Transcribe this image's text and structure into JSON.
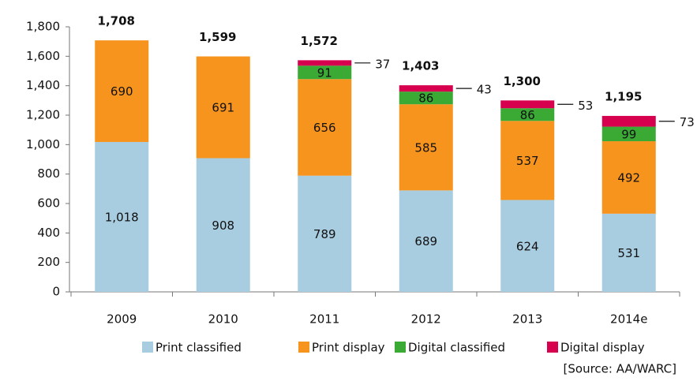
{
  "chart_data": {
    "type": "stacked_bar",
    "categories": [
      "2009",
      "2010",
      "2011",
      "2012",
      "2013",
      "2014e"
    ],
    "series": [
      {
        "name": "Print classified",
        "color": "#a9cde0",
        "values": [
          1018,
          908,
          789,
          689,
          624,
          531
        ],
        "value_labels": [
          "1,018",
          "908",
          "789",
          "689",
          "624",
          "531"
        ]
      },
      {
        "name": "Print display",
        "color": "#f7941d",
        "values": [
          690,
          691,
          656,
          585,
          537,
          492
        ]
      },
      {
        "name": "Digital classified",
        "color": "#3aaa35",
        "values": [
          null,
          null,
          91,
          86,
          86,
          99
        ]
      },
      {
        "name": "Digital display",
        "color": "#d6004f",
        "values": [
          null,
          null,
          37,
          43,
          53,
          73
        ]
      }
    ],
    "totals": {
      "values": [
        1708,
        1599,
        1572,
        1403,
        1300,
        1195
      ],
      "value_labels": [
        "1,708",
        "1,599",
        "1,572",
        "1,403",
        "1,300",
        "1,195"
      ]
    },
    "ylim": [
      0,
      1800
    ],
    "yticks": [
      0,
      200,
      400,
      600,
      800,
      {
        "value": 1000,
        "label": "1,000"
      },
      {
        "value": 1200,
        "label": "1,200"
      },
      {
        "value": 1400,
        "label": "1,400"
      },
      {
        "value": 1600,
        "label": "1,600"
      },
      {
        "value": 1800,
        "label": "1,800"
      }
    ],
    "legend": "bottom",
    "source": "[Source: AA/WARC]"
  }
}
